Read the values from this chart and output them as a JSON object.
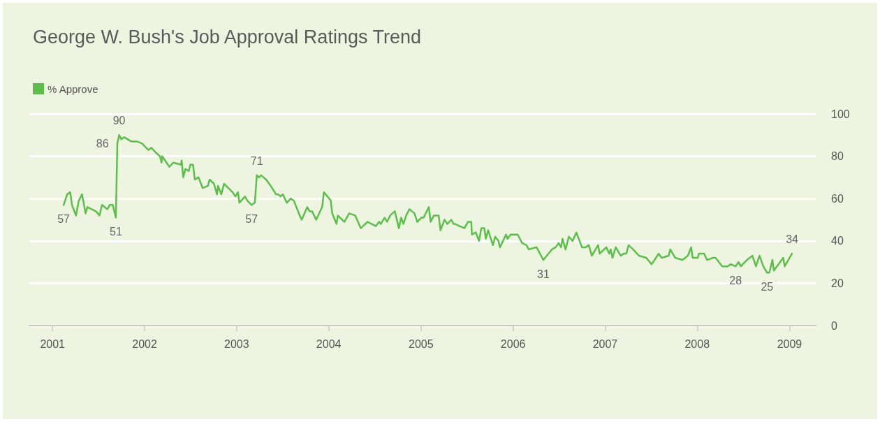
{
  "chart_data": {
    "type": "line",
    "title": "George W. Bush's Job Approval Ratings Trend",
    "legend": "top left",
    "grid": "y",
    "marker": "none",
    "line_style": "solid",
    "xlim": [
      "2000-10-01",
      "2009-04-15"
    ],
    "xticks": [
      "2001",
      "2002",
      "2003",
      "2004",
      "2005",
      "2006",
      "2007",
      "2008",
      "2009"
    ],
    "ylim": [
      0,
      100
    ],
    "yticks": [
      0,
      20,
      40,
      60,
      80,
      100
    ],
    "series": [
      {
        "name": "% Approve",
        "color": "#5cbf4a",
        "x": [
          "2001-02-14",
          "2001-02-28",
          "2001-03-12",
          "2001-03-19",
          "2001-04-04",
          "2001-04-15",
          "2001-04-28",
          "2001-05-12",
          "2001-05-19",
          "2001-06-22",
          "2001-07-06",
          "2001-07-16",
          "2001-08-06",
          "2001-08-16",
          "2001-08-28",
          "2001-09-09",
          "2001-09-15",
          "2001-09-22",
          "2001-10-01",
          "2001-10-12",
          "2001-11-09",
          "2001-12-01",
          "2001-12-22",
          "2002-01-16",
          "2002-01-28",
          "2002-02-12",
          "2002-03-03",
          "2002-03-09",
          "2002-03-12",
          "2002-04-09",
          "2002-04-25",
          "2002-05-25",
          "2002-05-28",
          "2002-06-03",
          "2002-06-12",
          "2002-06-25",
          "2002-07-01",
          "2002-07-12",
          "2002-07-19",
          "2002-08-03",
          "2002-08-19",
          "2002-09-09",
          "2002-09-16",
          "2002-10-03",
          "2002-10-15",
          "2002-10-19",
          "2002-11-01",
          "2002-11-12",
          "2002-12-16",
          "2002-12-27",
          "2003-01-06",
          "2003-01-12",
          "2003-02-03",
          "2003-02-12",
          "2003-03-01",
          "2003-03-14",
          "2003-03-22",
          "2003-03-30",
          "2003-04-08",
          "2003-04-28",
          "2003-05-16",
          "2003-06-06",
          "2003-06-15",
          "2003-06-24",
          "2003-07-03",
          "2003-07-19",
          "2003-08-03",
          "2003-08-16",
          "2003-09-08",
          "2003-09-16",
          "2003-10-08",
          "2003-10-17",
          "2003-10-27",
          "2003-11-12",
          "2003-12-06",
          "2003-12-13",
          "2004-01-03",
          "2004-01-09",
          "2004-01-15",
          "2004-02-01",
          "2004-02-06",
          "2004-03-03",
          "2004-03-22",
          "2004-04-15",
          "2004-05-07",
          "2004-06-03",
          "2004-07-06",
          "2004-07-19",
          "2004-07-25",
          "2004-08-10",
          "2004-08-19",
          "2004-09-01",
          "2004-09-19",
          "2004-10-05",
          "2004-10-14",
          "2004-10-23",
          "2004-11-03",
          "2004-11-16",
          "2004-12-06",
          "2004-12-17",
          "2005-01-03",
          "2005-01-11",
          "2005-02-01",
          "2005-02-08",
          "2005-02-21",
          "2005-03-12",
          "2005-03-19",
          "2005-04-04",
          "2005-04-15",
          "2005-05-01",
          "2005-05-10",
          "2005-05-16",
          "2005-06-03",
          "2005-06-22",
          "2005-07-06",
          "2005-07-19",
          "2005-07-22",
          "2005-08-06",
          "2005-08-19",
          "2005-08-28",
          "2005-09-09",
          "2005-09-15",
          "2005-09-24",
          "2005-10-13",
          "2005-10-22",
          "2005-11-04",
          "2005-11-10",
          "2005-12-04",
          "2005-12-10",
          "2005-12-22",
          "2006-01-19",
          "2006-02-06",
          "2006-02-23",
          "2006-03-04",
          "2006-04-04",
          "2006-05-01",
          "2006-06-04",
          "2006-06-19",
          "2006-07-01",
          "2006-07-10",
          "2006-07-16",
          "2006-07-28",
          "2006-08-10",
          "2006-08-25",
          "2006-09-09",
          "2006-10-01",
          "2006-10-16",
          "2006-10-28",
          "2006-11-09",
          "2006-12-04",
          "2006-12-10",
          "2007-01-06",
          "2007-01-17",
          "2007-01-23",
          "2007-01-30",
          "2007-02-12",
          "2007-03-04",
          "2007-03-15",
          "2007-03-26",
          "2007-04-04",
          "2007-04-22",
          "2007-05-15",
          "2007-06-13",
          "2007-07-04",
          "2007-07-16",
          "2007-08-01",
          "2007-08-13",
          "2007-09-10",
          "2007-09-16",
          "2007-10-06",
          "2007-11-04",
          "2007-11-25",
          "2007-12-08",
          "2007-12-14",
          "2008-01-03",
          "2008-01-08",
          "2008-01-28",
          "2008-02-09",
          "2008-03-03",
          "2008-03-14",
          "2008-04-09",
          "2008-05-01",
          "2008-05-13",
          "2008-06-01",
          "2008-06-13",
          "2008-06-22",
          "2008-07-16",
          "2008-08-07",
          "2008-08-21",
          "2008-09-04",
          "2008-09-19",
          "2008-10-04",
          "2008-10-13",
          "2008-10-25",
          "2008-10-31",
          "2008-11-12",
          "2008-12-07",
          "2008-12-13",
          "2009-01-11"
        ],
        "values": [
          57,
          62,
          63,
          57,
          52,
          59,
          62,
          53,
          56,
          54,
          52,
          57,
          55,
          57,
          57,
          51,
          86,
          90,
          88,
          89,
          87,
          87,
          86,
          83,
          84,
          82,
          80,
          77,
          80,
          75,
          77,
          76,
          78,
          70,
          74,
          73,
          76,
          76,
          69,
          70,
          65,
          66,
          69,
          67,
          62,
          66,
          62,
          67,
          63,
          61,
          63,
          58,
          61,
          59,
          57,
          58,
          71,
          70,
          71,
          69,
          66,
          62,
          62,
          61,
          62,
          58,
          60,
          59,
          52,
          50,
          56,
          54,
          54,
          50,
          56,
          63,
          60,
          59,
          53,
          48,
          52,
          49,
          53,
          52,
          46,
          49,
          47,
          49,
          48,
          51,
          49,
          52,
          54,
          46,
          51,
          48,
          52,
          55,
          53,
          49,
          51,
          51,
          56,
          49,
          52,
          52,
          45,
          50,
          48,
          50,
          48,
          48,
          47,
          46,
          49,
          49,
          43,
          44,
          40,
          46,
          46,
          41,
          45,
          38,
          42,
          40,
          37,
          43,
          41,
          43,
          43,
          39,
          38,
          36,
          37,
          31,
          36,
          37,
          39,
          37,
          41,
          36,
          42,
          40,
          44,
          37,
          37,
          38,
          33,
          38,
          34,
          37,
          34,
          36,
          32,
          37,
          33,
          34,
          34,
          38,
          36,
          33,
          32,
          29,
          31,
          34,
          32,
          33,
          36,
          32,
          31,
          33,
          37,
          32,
          32,
          34,
          34,
          31,
          32,
          32,
          28,
          28,
          29,
          28,
          30,
          28,
          31,
          33,
          28,
          33,
          28,
          25,
          25,
          31,
          26,
          28,
          32,
          28,
          34
        ]
      }
    ],
    "annotations": [
      {
        "text": "57",
        "x": "2001-02-14",
        "y": 57
      },
      {
        "text": "51",
        "x": "2001-09-09",
        "y": 51
      },
      {
        "text": "86",
        "x": "2001-09-15",
        "y": 86
      },
      {
        "text": "90",
        "x": "2001-09-22",
        "y": 90
      },
      {
        "text": "57",
        "x": "2003-03-01",
        "y": 57
      },
      {
        "text": "71",
        "x": "2003-03-22",
        "y": 71
      },
      {
        "text": "31",
        "x": "2006-05-01",
        "y": 31
      },
      {
        "text": "28",
        "x": "2008-06-01",
        "y": 28
      },
      {
        "text": "25",
        "x": "2008-10-04",
        "y": 25
      },
      {
        "text": "34",
        "x": "2009-01-11",
        "y": 34
      }
    ]
  }
}
